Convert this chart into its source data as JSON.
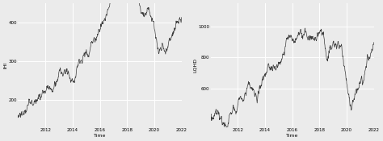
{
  "left_ylabel": "IHI",
  "right_ylabel": "LQHD",
  "xlabel": "Time",
  "x_start_year": 2010,
  "x_end_year": 2022,
  "x_ticks": [
    2012,
    2014,
    2016,
    2018,
    2020,
    2022
  ],
  "left_yticks": [
    200,
    300,
    400
  ],
  "right_yticks": [
    600,
    800,
    1000
  ],
  "left_ylim": [
    130,
    450
  ],
  "right_ylim": [
    350,
    1150
  ],
  "bg_color": "#EBEBEB",
  "line_color": "#3d3d3d",
  "grid_color": "#ffffff"
}
